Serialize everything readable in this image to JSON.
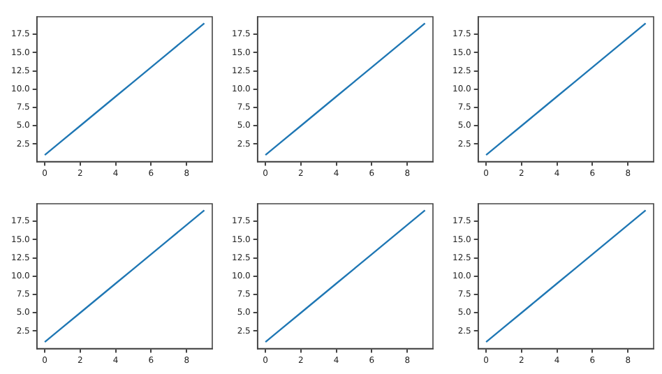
{
  "chart_data": [
    {
      "type": "line",
      "x": [
        0,
        1,
        2,
        3,
        4,
        5,
        6,
        7,
        8,
        9
      ],
      "series": [
        {
          "color": "#1f77b4",
          "values": [
            1,
            3,
            5,
            7,
            9,
            11,
            13,
            15,
            17,
            19
          ]
        }
      ],
      "xlim": [
        -0.45,
        9.45
      ],
      "ylim": [
        0.1,
        19.9
      ],
      "xticks": [
        0,
        2,
        4,
        6,
        8
      ],
      "yticks": [
        2.5,
        {
          "value": 5,
          "label": "5.0"
        },
        7.5,
        {
          "value": 10,
          "label": "10.0"
        },
        12.5,
        {
          "value": 15,
          "label": "15.0"
        },
        17.5
      ],
      "grid": false,
      "legend": false,
      "marker": "none",
      "line_style": "solid"
    },
    {
      "type": "line",
      "x": [
        0,
        1,
        2,
        3,
        4,
        5,
        6,
        7,
        8,
        9
      ],
      "series": [
        {
          "color": "#1f77b4",
          "values": [
            1,
            3,
            5,
            7,
            9,
            11,
            13,
            15,
            17,
            19
          ]
        }
      ],
      "xlim": [
        -0.45,
        9.45
      ],
      "ylim": [
        0.1,
        19.9
      ],
      "xticks": [
        0,
        2,
        4,
        6,
        8
      ],
      "yticks": [
        2.5,
        {
          "value": 5,
          "label": "5.0"
        },
        7.5,
        {
          "value": 10,
          "label": "10.0"
        },
        12.5,
        {
          "value": 15,
          "label": "15.0"
        },
        17.5
      ],
      "grid": false,
      "legend": false,
      "marker": "none",
      "line_style": "solid"
    },
    {
      "type": "line",
      "x": [
        0,
        1,
        2,
        3,
        4,
        5,
        6,
        7,
        8,
        9
      ],
      "series": [
        {
          "color": "#1f77b4",
          "values": [
            1,
            3,
            5,
            7,
            9,
            11,
            13,
            15,
            17,
            19
          ]
        }
      ],
      "xlim": [
        -0.45,
        9.45
      ],
      "ylim": [
        0.1,
        19.9
      ],
      "xticks": [
        0,
        2,
        4,
        6,
        8
      ],
      "yticks": [
        2.5,
        {
          "value": 5,
          "label": "5.0"
        },
        7.5,
        {
          "value": 10,
          "label": "10.0"
        },
        12.5,
        {
          "value": 15,
          "label": "15.0"
        },
        17.5
      ],
      "grid": false,
      "legend": false,
      "marker": "none",
      "line_style": "solid"
    },
    {
      "type": "line",
      "x": [
        0,
        1,
        2,
        3,
        4,
        5,
        6,
        7,
        8,
        9
      ],
      "series": [
        {
          "color": "#1f77b4",
          "values": [
            1,
            3,
            5,
            7,
            9,
            11,
            13,
            15,
            17,
            19
          ]
        }
      ],
      "xlim": [
        -0.45,
        9.45
      ],
      "ylim": [
        0.1,
        19.9
      ],
      "xticks": [
        0,
        2,
        4,
        6,
        8
      ],
      "yticks": [
        2.5,
        {
          "value": 5,
          "label": "5.0"
        },
        7.5,
        {
          "value": 10,
          "label": "10.0"
        },
        12.5,
        {
          "value": 15,
          "label": "15.0"
        },
        17.5
      ],
      "grid": false,
      "legend": false,
      "marker": "none",
      "line_style": "solid"
    },
    {
      "type": "line",
      "x": [
        0,
        1,
        2,
        3,
        4,
        5,
        6,
        7,
        8,
        9
      ],
      "series": [
        {
          "color": "#1f77b4",
          "values": [
            1,
            3,
            5,
            7,
            9,
            11,
            13,
            15,
            17,
            19
          ]
        }
      ],
      "xlim": [
        -0.45,
        9.45
      ],
      "ylim": [
        0.1,
        19.9
      ],
      "xticks": [
        0,
        2,
        4,
        6,
        8
      ],
      "yticks": [
        2.5,
        {
          "value": 5,
          "label": "5.0"
        },
        7.5,
        {
          "value": 10,
          "label": "10.0"
        },
        12.5,
        {
          "value": 15,
          "label": "15.0"
        },
        17.5
      ],
      "grid": false,
      "legend": false,
      "marker": "none",
      "line_style": "solid"
    },
    {
      "type": "line",
      "x": [
        0,
        1,
        2,
        3,
        4,
        5,
        6,
        7,
        8,
        9
      ],
      "series": [
        {
          "color": "#1f77b4",
          "values": [
            1,
            3,
            5,
            7,
            9,
            11,
            13,
            15,
            17,
            19
          ]
        }
      ],
      "xlim": [
        -0.45,
        9.45
      ],
      "ylim": [
        0.1,
        19.9
      ],
      "xticks": [
        0,
        2,
        4,
        6,
        8
      ],
      "yticks": [
        2.5,
        {
          "value": 5,
          "label": "5.0"
        },
        7.5,
        {
          "value": 10,
          "label": "10.0"
        },
        12.5,
        {
          "value": 15,
          "label": "15.0"
        },
        17.5
      ],
      "grid": false,
      "legend": false,
      "marker": "none",
      "line_style": "solid"
    }
  ]
}
